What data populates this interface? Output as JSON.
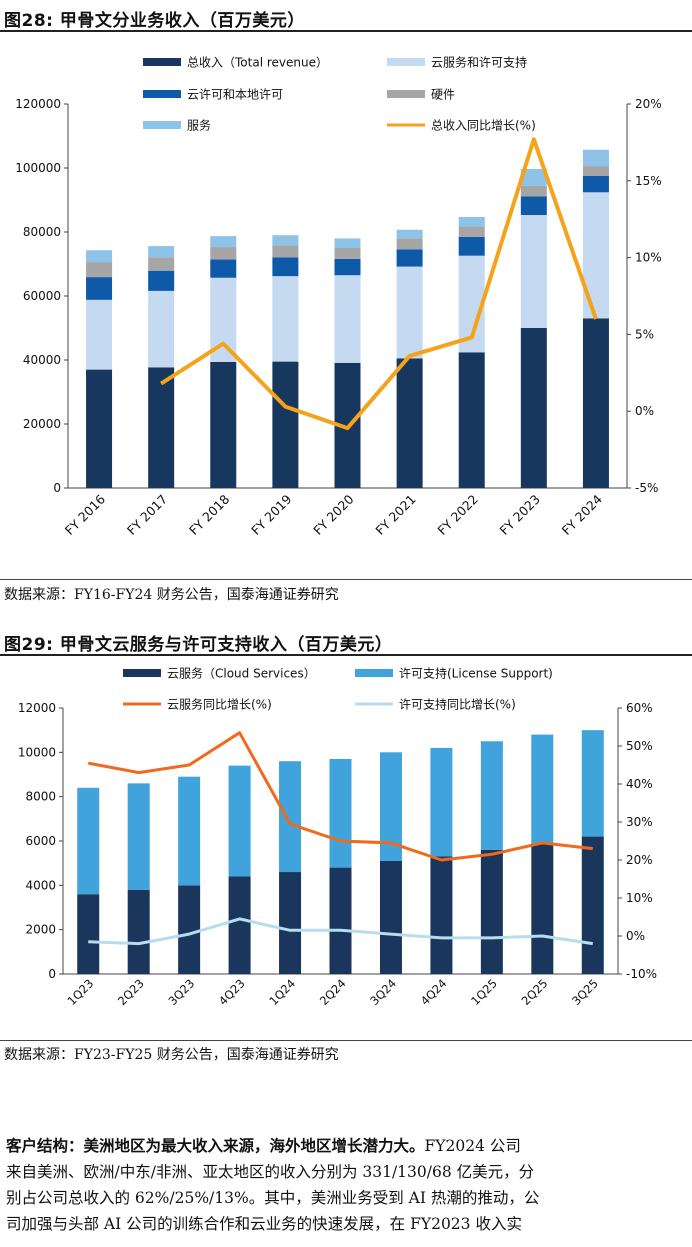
{
  "figure28": {
    "title": "图28:  甲骨文分业务收入（百万美元）",
    "source": "数据来源：FY16-FY24 财务公告，国泰海通证券研究",
    "chart_data": {
      "type": "bar",
      "stacked": true,
      "categories": [
        "FY 2016",
        "FY 2017",
        "FY 2018",
        "FY 2019",
        "FY 2020",
        "FY 2021",
        "FY 2022",
        "FY 2023",
        "FY 2024"
      ],
      "series": [
        {
          "name": "总收入（Total revenue）",
          "kind": "legend-only",
          "color": "#17375e",
          "values": [
            37000,
            37700,
            39400,
            39500,
            39100,
            40500,
            42400,
            50000,
            53000
          ]
        },
        {
          "name": "云服务和许可支持",
          "color": "#c5d9f1",
          "values": [
            21800,
            23900,
            26300,
            26700,
            27400,
            28700,
            30200,
            35300,
            39400
          ]
        },
        {
          "name": "云许可和本地许可",
          "color": "#0f5aa8",
          "values": [
            7100,
            6300,
            5700,
            5900,
            5100,
            5400,
            5900,
            5800,
            5100
          ]
        },
        {
          "name": "硬件",
          "color": "#a6a6a6",
          "values": [
            4700,
            4200,
            3900,
            3700,
            3400,
            3400,
            3200,
            3300,
            3100
          ]
        },
        {
          "name": "服务",
          "color": "#8dc3e8",
          "values": [
            3700,
            3500,
            3400,
            3200,
            3000,
            2700,
            3000,
            5300,
            5100
          ]
        },
        {
          "name": "总收入同比增长(%)",
          "kind": "line",
          "axis": "right",
          "color": "#f5a31a",
          "x": [
            "FY 2017",
            "FY 2018",
            "FY 2019",
            "FY 2020",
            "FY 2021",
            "FY 2022",
            "FY 2023",
            "FY 2024"
          ],
          "values": [
            1.8,
            4.4,
            0.3,
            -1.1,
            3.6,
            4.8,
            17.7,
            6.0
          ]
        }
      ],
      "y_left": {
        "min": 0,
        "max": 120000,
        "ticks": [
          "0",
          "20000",
          "40000",
          "60000",
          "80000",
          "100000",
          "120000"
        ]
      },
      "y_right": {
        "min": -5,
        "max": 20,
        "ticks": [
          "-5%",
          "0%",
          "5%",
          "10%",
          "15%",
          "20%"
        ]
      },
      "legend_position": "top"
    }
  },
  "figure29": {
    "title": "图29:  甲骨文云服务与许可支持收入（百万美元）",
    "source": "数据来源：FY23-FY25 财务公告，国泰海通证券研究",
    "chart_data": {
      "type": "bar",
      "stacked": true,
      "categories": [
        "1Q23",
        "2Q23",
        "3Q23",
        "4Q23",
        "1Q24",
        "2Q24",
        "3Q24",
        "4Q24",
        "1Q25",
        "2Q25",
        "3Q25"
      ],
      "series": [
        {
          "name": "云服务（Cloud Services）",
          "color": "#1b365d",
          "values": [
            3600,
            3800,
            4000,
            4400,
            4600,
            4800,
            5100,
            5300,
            5600,
            5900,
            6200
          ]
        },
        {
          "name": "许可支持(License Support)",
          "color": "#41a3db",
          "values": [
            4800,
            4800,
            4900,
            5000,
            5000,
            4900,
            4900,
            4900,
            4900,
            4900,
            4800
          ]
        },
        {
          "name": "云服务同比增长(%)",
          "kind": "line",
          "axis": "right",
          "color": "#f06a1d",
          "values": [
            45.5,
            43.0,
            45.0,
            53.5,
            29.5,
            25.0,
            24.5,
            20.0,
            21.5,
            24.5,
            23.0
          ]
        },
        {
          "name": "许可支持同比增长(%)",
          "kind": "line",
          "axis": "right",
          "color": "#b8dcef",
          "values": [
            -1.5,
            -2.0,
            0.5,
            4.5,
            1.5,
            1.5,
            0.5,
            -0.5,
            -0.5,
            0,
            -2.0
          ]
        }
      ],
      "y_left": {
        "min": 0,
        "max": 12000,
        "ticks": [
          "0",
          "2000",
          "4000",
          "6000",
          "8000",
          "10000",
          "12000"
        ]
      },
      "y_right": {
        "min": -10,
        "max": 60,
        "ticks": [
          "-10%",
          "0%",
          "10%",
          "20%",
          "30%",
          "40%",
          "50%",
          "60%"
        ]
      },
      "legend_position": "top"
    }
  },
  "paragraph": {
    "heading": "客户结构：美洲地区为最大收入来源，海外地区增长潜力大。",
    "lines": [
      "FY2024 公司",
      "来自美洲、欧洲/中东/非洲、亚太地区的收入分别为 331/130/68 亿美元，分",
      "别占公司总收入的 62%/25%/13%。其中，美洲业务受到 AI 热潮的推动，公",
      "司加强与头部 AI 公司的训练合作和云业务的快速发展，在 FY2023 收入实"
    ]
  }
}
